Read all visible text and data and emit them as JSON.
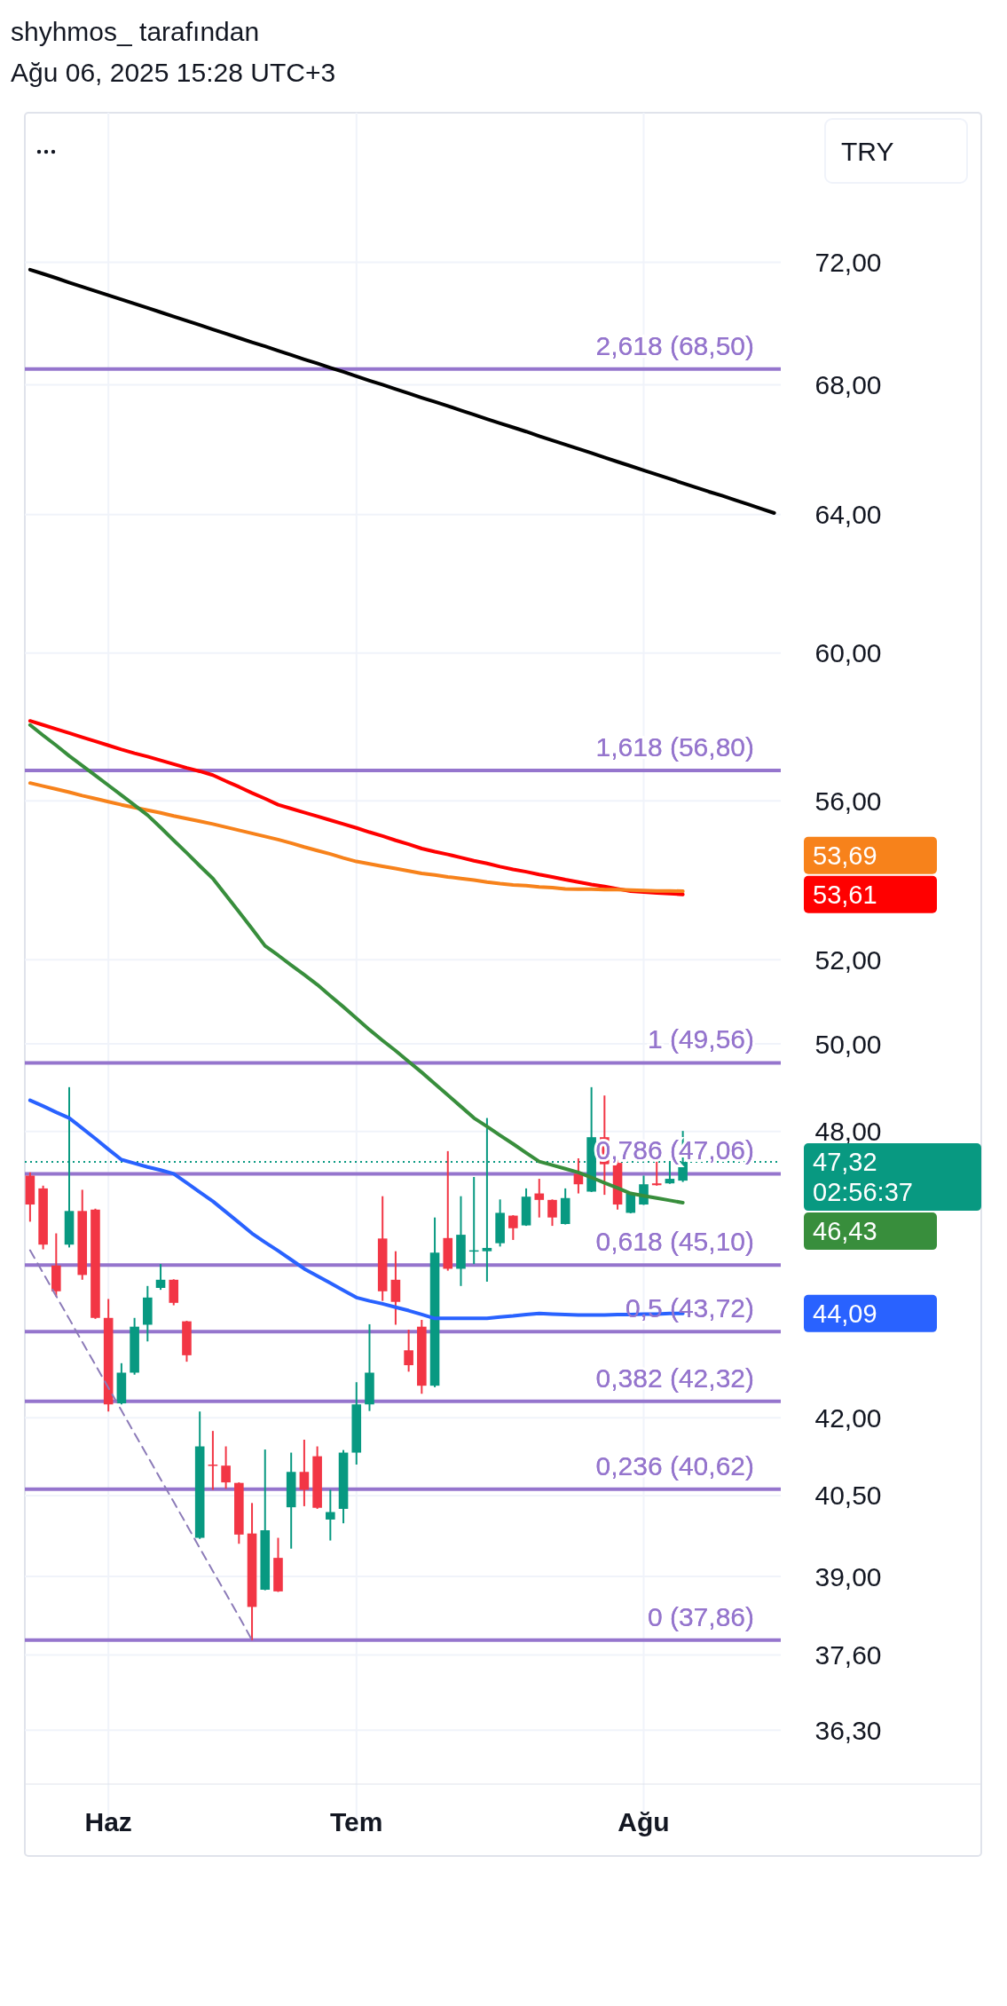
{
  "chart_data": {
    "type": "candlestick",
    "title": "shyhmos_ tarafından",
    "subtitle": "Ağu 06, 2025 15:28 UTC+3",
    "categories": [
      null,
      null,
      null,
      null,
      null,
      null,
      "Haz",
      null,
      null,
      null,
      null,
      null,
      null,
      null,
      null,
      null,
      null,
      null,
      null,
      null,
      null,
      null,
      null,
      null,
      null,
      "Tem",
      null,
      null,
      null,
      null,
      null,
      null,
      null,
      null,
      null,
      null,
      null,
      null,
      null,
      null,
      null,
      null,
      null,
      null,
      null,
      null,
      null,
      "Ağu",
      null,
      null,
      null,
      null,
      null,
      null,
      null,
      null,
      null,
      null
    ],
    "ohlc": [
      [
        47.02,
        47.09,
        46.02,
        46.39
      ],
      [
        46.74,
        46.8,
        45.43,
        45.53
      ],
      [
        45.09,
        45.77,
        44.44,
        44.55
      ],
      [
        45.53,
        49.0,
        45.47,
        46.25
      ],
      [
        46.25,
        46.71,
        44.79,
        44.89
      ],
      [
        46.28,
        46.3,
        43.98,
        44.0
      ],
      [
        44.0,
        44.39,
        42.12,
        42.26
      ],
      [
        42.28,
        43.08,
        42.26,
        42.89
      ],
      [
        42.89,
        44.0,
        42.85,
        43.82
      ],
      [
        43.86,
        44.66,
        43.52,
        44.42
      ],
      [
        44.62,
        45.12,
        44.58,
        44.79
      ],
      [
        44.79,
        44.8,
        44.26,
        44.31
      ],
      [
        43.93,
        43.94,
        43.11,
        43.24
      ],
      [
        39.71,
        42.12,
        39.69,
        41.44
      ],
      [
        41.09,
        41.74,
        40.61,
        41.07
      ],
      [
        41.07,
        41.44,
        40.63,
        40.75
      ],
      [
        40.74,
        40.75,
        39.6,
        39.77
      ],
      [
        39.79,
        40.36,
        37.86,
        38.45
      ],
      [
        38.76,
        41.38,
        38.75,
        39.85
      ],
      [
        39.34,
        39.71,
        38.72,
        38.73
      ],
      [
        40.28,
        41.32,
        39.51,
        40.95
      ],
      [
        40.95,
        41.57,
        40.3,
        40.61
      ],
      [
        41.25,
        41.44,
        40.25,
        40.27
      ],
      [
        40.05,
        40.61,
        39.66,
        40.19
      ],
      [
        40.25,
        41.37,
        39.98,
        41.32
      ],
      [
        41.32,
        42.7,
        41.09,
        42.26
      ],
      [
        42.26,
        43.87,
        42.13,
        42.89
      ],
      [
        45.66,
        46.57,
        44.35,
        44.55
      ],
      [
        44.79,
        45.39,
        43.86,
        44.33
      ],
      [
        43.34,
        43.76,
        42.91,
        43.04
      ],
      [
        43.82,
        43.96,
        42.47,
        42.63
      ],
      [
        42.63,
        46.11,
        42.6,
        45.36
      ],
      [
        45.67,
        47.56,
        44.98,
        45.02
      ],
      [
        45.02,
        46.57,
        44.66,
        45.74
      ],
      [
        45.39,
        46.99,
        45.12,
        45.41
      ],
      [
        45.39,
        48.3,
        44.75,
        45.46
      ],
      [
        45.56,
        46.5,
        45.49,
        46.21
      ],
      [
        46.15,
        46.16,
        45.63,
        45.88
      ],
      [
        45.94,
        46.74,
        45.93,
        46.56
      ],
      [
        46.63,
        46.95,
        46.11,
        46.49
      ],
      [
        46.49,
        46.5,
        45.93,
        46.11
      ],
      [
        45.97,
        46.74,
        45.96,
        46.53
      ],
      [
        47.06,
        47.4,
        46.63,
        46.83
      ],
      [
        46.67,
        49.0,
        46.66,
        47.87
      ],
      [
        47.87,
        48.81,
        46.6,
        47.27
      ],
      [
        47.3,
        47.37,
        46.28,
        46.39
      ],
      [
        46.21,
        46.64,
        46.2,
        46.63
      ],
      [
        46.39,
        47.02,
        46.38,
        46.83
      ],
      [
        46.85,
        47.34,
        46.8,
        46.81
      ],
      [
        46.85,
        47.33,
        46.84,
        46.95
      ],
      [
        46.91,
        48.01,
        46.88,
        47.32
      ],
      null,
      null,
      null,
      null,
      null,
      null,
      null
    ],
    "series": [
      {
        "type": "line",
        "color": "#000000",
        "values": [
          71.75,
          71.61,
          71.47,
          71.32,
          71.18,
          71.04,
          70.9,
          70.76,
          70.62,
          70.48,
          70.34,
          70.2,
          70.06,
          69.92,
          69.78,
          69.64,
          69.5,
          69.36,
          69.23,
          69.09,
          68.95,
          68.81,
          68.68,
          68.54,
          68.41,
          68.27,
          68.13,
          68.0,
          67.86,
          67.73,
          67.59,
          67.46,
          67.33,
          67.19,
          67.06,
          66.92,
          66.79,
          66.66,
          66.53,
          66.39,
          66.26,
          66.13,
          66.0,
          65.87,
          65.73,
          65.6,
          65.47,
          65.34,
          65.21,
          65.08,
          64.95,
          64.82,
          64.69,
          64.57,
          64.44,
          64.31,
          64.18,
          64.05
        ]
      },
      {
        "type": "line",
        "color": "#ff0000",
        "values": [
          58.13,
          58.02,
          57.91,
          57.8,
          57.69,
          57.58,
          57.47,
          57.36,
          57.26,
          57.17,
          57.07,
          56.97,
          56.87,
          56.78,
          56.68,
          56.52,
          56.37,
          56.21,
          56.06,
          55.9,
          55.8,
          55.7,
          55.6,
          55.5,
          55.4,
          55.3,
          55.19,
          55.09,
          54.98,
          54.88,
          54.77,
          54.69,
          54.62,
          54.54,
          54.46,
          54.39,
          54.31,
          54.24,
          54.18,
          54.11,
          54.05,
          53.98,
          53.92,
          53.86,
          53.81,
          53.75,
          53.69,
          53.67,
          53.65,
          53.63,
          53.61,
          null,
          null,
          null,
          null,
          null,
          null,
          null
        ]
      },
      {
        "type": "line",
        "color": "#f7821b",
        "values": [
          56.47,
          56.39,
          56.31,
          56.23,
          56.14,
          56.06,
          55.98,
          55.9,
          55.83,
          55.76,
          55.69,
          55.61,
          55.54,
          55.47,
          55.4,
          55.32,
          55.24,
          55.16,
          55.08,
          55.0,
          54.91,
          54.81,
          54.72,
          54.63,
          54.53,
          54.44,
          54.38,
          54.32,
          54.26,
          54.2,
          54.14,
          54.1,
          54.05,
          54.01,
          53.97,
          53.92,
          53.88,
          53.85,
          53.83,
          53.8,
          53.78,
          53.75,
          53.74,
          53.74,
          53.73,
          53.73,
          53.72,
          53.71,
          53.7,
          53.7,
          53.69,
          null,
          null,
          null,
          null,
          null,
          null,
          null
        ]
      },
      {
        "type": "line",
        "color": "#388e3c",
        "values": [
          58.02,
          57.74,
          57.47,
          57.19,
          56.93,
          56.67,
          56.41,
          56.15,
          55.89,
          55.63,
          55.31,
          54.98,
          54.66,
          54.33,
          54.01,
          53.59,
          53.18,
          52.76,
          52.34,
          52.11,
          51.87,
          51.64,
          51.4,
          51.13,
          50.87,
          50.6,
          50.33,
          50.08,
          49.84,
          49.59,
          49.34,
          49.08,
          48.82,
          48.56,
          48.3,
          48.11,
          47.91,
          47.72,
          47.52,
          47.33,
          47.25,
          47.17,
          47.09,
          46.98,
          46.86,
          46.75,
          46.63,
          46.58,
          46.53,
          46.48,
          46.43,
          null,
          null,
          null,
          null,
          null,
          null,
          null
        ]
      },
      {
        "type": "line",
        "color": "#2962ff",
        "values": [
          48.7,
          48.57,
          48.43,
          48.3,
          48.07,
          47.84,
          47.6,
          47.37,
          47.29,
          47.21,
          47.14,
          47.06,
          46.86,
          46.66,
          46.46,
          46.23,
          46.0,
          45.77,
          45.58,
          45.4,
          45.21,
          45.02,
          44.87,
          44.72,
          44.57,
          44.42,
          44.35,
          44.29,
          44.22,
          44.15,
          44.07,
          43.99,
          43.99,
          43.99,
          43.99,
          43.99,
          44.02,
          44.04,
          44.07,
          44.09,
          44.08,
          44.07,
          44.06,
          44.06,
          44.06,
          44.07,
          44.07,
          44.08,
          44.08,
          44.09,
          44.09,
          null,
          null,
          null,
          null,
          null,
          null,
          null
        ]
      },
      {
        "type": "line",
        "color": "#8c7bb8",
        "line_style": "dashed",
        "values": [
          45.41,
          44.93,
          44.45,
          43.98,
          43.51,
          43.05,
          42.59,
          42.14,
          41.69,
          41.25,
          40.81,
          40.38,
          39.95,
          39.52,
          39.1,
          38.69,
          38.28,
          37.86,
          null,
          null,
          null,
          null,
          null,
          null,
          null,
          null,
          null,
          null,
          null,
          null,
          null,
          null,
          null,
          null,
          null,
          null,
          null,
          null,
          null,
          null,
          null,
          null,
          null,
          null,
          null,
          null,
          null,
          null,
          null,
          null,
          null,
          null,
          null,
          null,
          null,
          null,
          null,
          null
        ]
      }
    ],
    "ylim": [
      35.4,
      77.2
    ],
    "log": "y",
    "yticks": [
      {
        "value": 72,
        "label": "72,00"
      },
      {
        "value": 68,
        "label": "68,00"
      },
      {
        "value": 64,
        "label": "64,00"
      },
      {
        "value": 60,
        "label": "60,00"
      },
      {
        "value": 56,
        "label": "56,00"
      },
      {
        "value": 52,
        "label": "52,00"
      },
      {
        "value": 50,
        "label": "50,00"
      },
      {
        "value": 48,
        "label": "48,00"
      },
      {
        "value": 42,
        "label": "42,00"
      },
      {
        "value": 40.5,
        "label": "40,50"
      },
      {
        "value": 39,
        "label": "39,00"
      },
      {
        "value": 37.6,
        "label": "37,60"
      },
      {
        "value": 36.3,
        "label": "36,30"
      }
    ],
    "grid": true,
    "ref_lines": [
      {
        "axis": "y",
        "value": 68.5,
        "label": "2,618 (68,50)",
        "color": "#9575cd"
      },
      {
        "axis": "y",
        "value": 56.8,
        "label": "1,618 (56,80)",
        "color": "#9575cd"
      },
      {
        "axis": "y",
        "value": 49.56,
        "label": "1 (49,56)",
        "color": "#9575cd"
      },
      {
        "axis": "y",
        "value": 47.06,
        "label": "0,786 (47,06)",
        "color": "#9575cd"
      },
      {
        "axis": "y",
        "value": 45.1,
        "label": "0,618 (45,10)",
        "color": "#9575cd"
      },
      {
        "axis": "y",
        "value": 43.72,
        "label": "0,5 (43,72)",
        "color": "#9575cd"
      },
      {
        "axis": "y",
        "value": 42.32,
        "label": "0,382 (42,32)",
        "color": "#9575cd"
      },
      {
        "axis": "y",
        "value": 40.62,
        "label": "0,236 (40,62)",
        "color": "#9575cd"
      },
      {
        "axis": "y",
        "value": 37.86,
        "label": "0 (37,86)",
        "color": "#9575cd"
      },
      {
        "axis": "y",
        "value": 47.32,
        "color": "#089981",
        "line_style": "dotted"
      }
    ],
    "annotations": [
      "TRY",
      "47,32",
      "02:56:37",
      "53,69",
      "53,61",
      "46,43",
      "44,09"
    ]
  }
}
